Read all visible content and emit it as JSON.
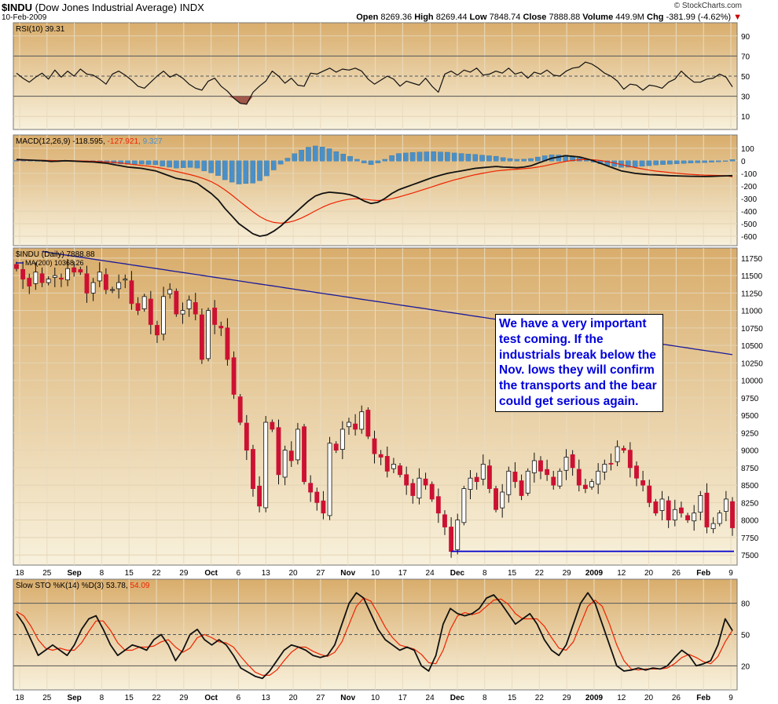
{
  "header": {
    "symbol": "$INDU",
    "name": "(Dow Jones Industrial Average)",
    "exchange": "INDX",
    "date": "10-Feb-2009",
    "credit": "© StockCharts.com",
    "open_label": "Open",
    "open": "8269.36",
    "high_label": "High",
    "high": "8269.44",
    "low_label": "Low",
    "low": "7848.74",
    "close_label": "Close",
    "close": "7888.88",
    "volume_label": "Volume",
    "volume": "449.9M",
    "chg_label": "Chg",
    "chg": "-381.99 (-4.62%)"
  },
  "annotation": "We have a very important test coming. If the industrials break below the Nov. lows they will confirm the transports and the bear could get serious again.",
  "colors": {
    "panel_top": "#d9ad6c",
    "panel_bottom": "#f8f1dc",
    "up_candle": "#ffffff",
    "down_candle": "#cc1133",
    "ma": "#1a1a99",
    "signal": "#ee2200",
    "histogram": "#4a90c8",
    "support": "#0000cc",
    "annotation_text": "#0000dd"
  },
  "chart_data": [
    {
      "type": "line",
      "title": "RSI(10) 39.31",
      "indicator": "RSI(10)",
      "last": 39.31,
      "ylim": [
        0,
        100
      ],
      "yticks": [
        90,
        70,
        50,
        30,
        10
      ],
      "reference_lines": [
        70,
        50,
        30
      ],
      "values": [
        53,
        48,
        44,
        49,
        53,
        47,
        56,
        49,
        55,
        50,
        57,
        52,
        51,
        47,
        42,
        52,
        55,
        51,
        46,
        40,
        38,
        44,
        50,
        55,
        49,
        52,
        48,
        42,
        38,
        36,
        45,
        48,
        40,
        35,
        28,
        23,
        22,
        34,
        40,
        45,
        55,
        50,
        43,
        48,
        41,
        40,
        53,
        52,
        55,
        58,
        54,
        57,
        56,
        58,
        55,
        47,
        42,
        46,
        50,
        47,
        40,
        45,
        43,
        41,
        48,
        40,
        34,
        52,
        55,
        51,
        56,
        54,
        58,
        51,
        52,
        55,
        53,
        58,
        52,
        54,
        48,
        54,
        52,
        56,
        51,
        50,
        55,
        58,
        59,
        64,
        62,
        58,
        53,
        50,
        45,
        37,
        42,
        41,
        36,
        41,
        40,
        38,
        44,
        47,
        55,
        49,
        44,
        44,
        47,
        48,
        52,
        49,
        39.31
      ]
    },
    {
      "type": "line",
      "title": "MACD(12,26,9)",
      "series_labels": [
        "-118.595",
        "-127.921",
        "9.327"
      ],
      "ylim": [
        -650,
        180
      ],
      "yticks": [
        100,
        0,
        -100,
        -200,
        -300,
        -400,
        -500,
        -600
      ],
      "macd": [
        10,
        8,
        5,
        3,
        0,
        -5,
        -3,
        0,
        -2,
        -5,
        -8,
        -10,
        -15,
        -20,
        -30,
        -40,
        -50,
        -55,
        -60,
        -70,
        -80,
        -100,
        -120,
        -140,
        -150,
        -160,
        -180,
        -220,
        -260,
        -310,
        -380,
        -440,
        -500,
        -540,
        -580,
        -600,
        -590,
        -560,
        -520,
        -470,
        -420,
        -370,
        -320,
        -280,
        -260,
        -250,
        -255,
        -260,
        -270,
        -290,
        -320,
        -340,
        -330,
        -300,
        -260,
        -230,
        -210,
        -190,
        -170,
        -150,
        -130,
        -115,
        -100,
        -90,
        -80,
        -70,
        -60,
        -55,
        -50,
        -45,
        -50,
        -52,
        -55,
        -50,
        -40,
        -20,
        0,
        20,
        30,
        40,
        35,
        30,
        15,
        0,
        -20,
        -40,
        -60,
        -80,
        -90,
        -100,
        -105,
        -110,
        -112,
        -115,
        -118,
        -120,
        -122,
        -123,
        -124,
        -125,
        -124,
        -122,
        -120,
        -118.595
      ],
      "signal": [
        5,
        5,
        4,
        4,
        3,
        2,
        1,
        0,
        0,
        -1,
        -2,
        -4,
        -6,
        -9,
        -13,
        -18,
        -25,
        -31,
        -37,
        -43,
        -51,
        -60,
        -72,
        -85,
        -98,
        -110,
        -125,
        -143,
        -166,
        -195,
        -232,
        -273,
        -318,
        -362,
        -405,
        -444,
        -473,
        -490,
        -496,
        -491,
        -477,
        -455,
        -428,
        -398,
        -370,
        -346,
        -328,
        -314,
        -305,
        -302,
        -305,
        -312,
        -316,
        -312,
        -302,
        -288,
        -272,
        -256,
        -239,
        -221,
        -203,
        -185,
        -168,
        -152,
        -138,
        -124,
        -111,
        -100,
        -90,
        -81,
        -75,
        -70,
        -67,
        -63,
        -58,
        -50,
        -40,
        -28,
        -16,
        -5,
        3,
        8,
        10,
        8,
        2,
        -7,
        -18,
        -30,
        -42,
        -54,
        -64,
        -74,
        -82,
        -88,
        -94,
        -99,
        -104,
        -108,
        -111,
        -114,
        -116,
        -117,
        -118,
        -127.921
      ],
      "histogram_last": 9.327
    },
    {
      "type": "candlestick",
      "title": "$INDU (Daily) 7888.88",
      "legend": [
        "MA(200) 10368.26"
      ],
      "ylim": [
        7400,
        11850
      ],
      "yticks": [
        11750,
        11500,
        11250,
        11000,
        10750,
        10500,
        10250,
        10000,
        9750,
        9500,
        9250,
        9000,
        8750,
        8500,
        8250,
        8000,
        7750,
        7500
      ],
      "x_tick_labels": [
        "18",
        "25",
        "Sep",
        "8",
        "15",
        "22",
        "29",
        "Oct",
        "6",
        "13",
        "20",
        "27",
        "Nov",
        "10",
        "17",
        "24",
        "Dec",
        "8",
        "15",
        "22",
        "29",
        "2009",
        "12",
        "20",
        "26",
        "Feb",
        "9"
      ],
      "support_level": 7552,
      "ma200_start": 11900,
      "ma200_end": 10368.26,
      "closes": [
        11600,
        11450,
        11350,
        11550,
        11400,
        11450,
        11500,
        11450,
        11600,
        11550,
        11550,
        11250,
        11400,
        11550,
        11300,
        11300,
        11400,
        11450,
        11100,
        11000,
        11200,
        10800,
        10650,
        11200,
        11300,
        10950,
        11000,
        11150,
        10950,
        10300,
        11000,
        10800,
        10750,
        10300,
        9800,
        9400,
        9000,
        8450,
        8200,
        9400,
        9300,
        8650,
        9000,
        8850,
        9300,
        8550,
        8400,
        8250,
        8100,
        9100,
        9000,
        9300,
        9400,
        9300,
        9550,
        9200,
        8950,
        8900,
        8700,
        8800,
        8650,
        8500,
        8350,
        8600,
        8500,
        8300,
        8100,
        7900,
        7550,
        8000,
        8450,
        8600,
        8550,
        8800,
        8450,
        8150,
        8400,
        8700,
        8550,
        8350,
        8700,
        8850,
        8700,
        8650,
        8500,
        8700,
        8900,
        8750,
        8500,
        8450,
        8550,
        8700,
        8800,
        8800,
        9050,
        9000,
        8750,
        8600,
        8500,
        8250,
        8100,
        8300,
        8000,
        8150,
        8100,
        8000,
        8100,
        8350,
        7900,
        7950,
        8100,
        8300,
        7888.88
      ],
      "last": 7888.88
    },
    {
      "type": "line",
      "title": "Slow STO %K(14) %D(3)",
      "series_labels": [
        "53.78",
        "54.09"
      ],
      "ylim": [
        0,
        100
      ],
      "yticks": [
        80,
        50,
        20
      ],
      "reference_lines": [
        80,
        50,
        20
      ],
      "k": [
        70,
        60,
        45,
        30,
        35,
        40,
        35,
        30,
        40,
        55,
        65,
        68,
        55,
        40,
        30,
        35,
        40,
        38,
        35,
        45,
        50,
        40,
        25,
        35,
        50,
        55,
        45,
        40,
        45,
        40,
        30,
        18,
        14,
        10,
        8,
        15,
        25,
        35,
        40,
        38,
        35,
        30,
        28,
        30,
        40,
        60,
        80,
        90,
        85,
        70,
        55,
        45,
        40,
        35,
        38,
        35,
        20,
        15,
        30,
        60,
        75,
        70,
        68,
        70,
        75,
        85,
        88,
        80,
        70,
        60,
        65,
        70,
        60,
        45,
        35,
        30,
        40,
        60,
        80,
        90,
        80,
        60,
        40,
        20,
        15,
        16,
        18,
        16,
        18,
        17,
        20,
        28,
        35,
        30,
        20,
        22,
        25,
        40,
        65,
        53.78
      ],
      "d": [
        72,
        68,
        58,
        45,
        37,
        35,
        37,
        35,
        35,
        42,
        53,
        63,
        63,
        54,
        42,
        35,
        35,
        38,
        38,
        39,
        43,
        45,
        38,
        33,
        37,
        47,
        50,
        47,
        43,
        42,
        38,
        29,
        21,
        14,
        11,
        11,
        16,
        25,
        33,
        38,
        38,
        34,
        31,
        29,
        33,
        43,
        60,
        77,
        85,
        82,
        70,
        57,
        47,
        40,
        38,
        36,
        31,
        23,
        22,
        35,
        55,
        68,
        71,
        69,
        71,
        77,
        83,
        84,
        79,
        70,
        65,
        65,
        65,
        58,
        47,
        37,
        35,
        43,
        60,
        77,
        83,
        77,
        60,
        40,
        25,
        17,
        16,
        17,
        17,
        17,
        18,
        22,
        28,
        31,
        28,
        24,
        22,
        29,
        43,
        54.09
      ]
    }
  ]
}
